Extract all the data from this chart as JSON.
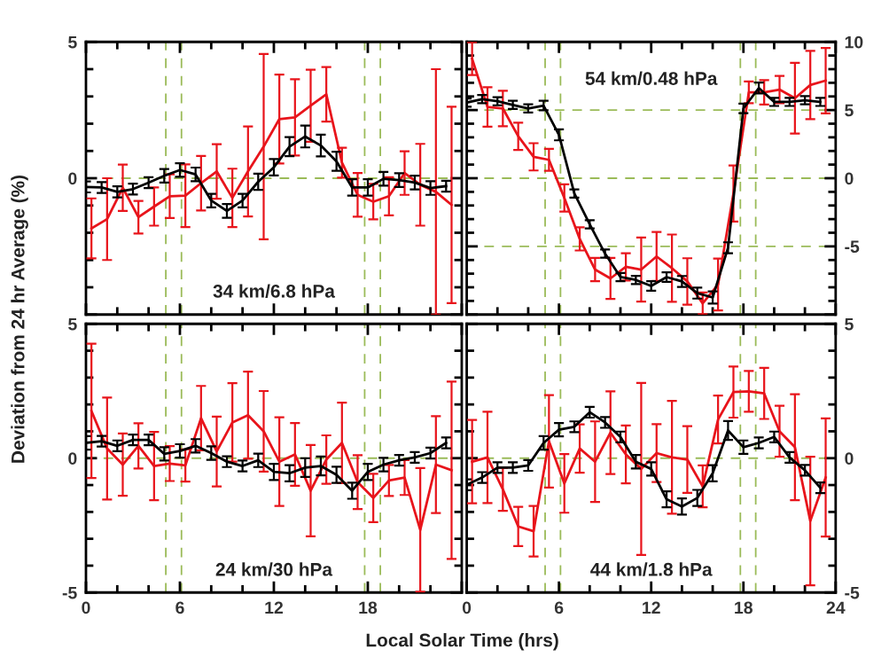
{
  "chart_data": [
    {
      "type": "line",
      "ylabel": "Deviation from 24 hr Average (%)",
      "annotations": [
        "34 km/6.8 hPa"
      ],
      "xlim": [
        0,
        24
      ],
      "xticks": [
        0,
        6,
        12,
        18,
        24
      ],
      "ylim": [
        -5,
        5
      ],
      "yticks": [
        {
          "value": -5,
          "label": null
        },
        0,
        5
      ],
      "tick_labels": "y",
      "grid": false,
      "marker": "none",
      "line_style": "solid",
      "ref_lines": [
        {
          "axis": "x",
          "value": 5.1,
          "color": "#9bbb59",
          "line_style": "dashed"
        },
        {
          "axis": "x",
          "value": 6.1,
          "color": "#9bbb59",
          "line_style": "dashed"
        },
        {
          "axis": "x",
          "value": 17.8,
          "color": "#9bbb59",
          "line_style": "dashed"
        },
        {
          "axis": "x",
          "value": 18.8,
          "color": "#9bbb59",
          "line_style": "dashed"
        },
        {
          "axis": "y",
          "value": 0,
          "color": "#9bbb59",
          "line_style": "dashed"
        }
      ],
      "series": [
        {
          "color": "#e8141b",
          "x": [
            0.35,
            1.35,
            2.35,
            3.35,
            4.35,
            5.35,
            6.35,
            7.35,
            8.35,
            9.35,
            10.35,
            11.35,
            12.35,
            13.35,
            14.35,
            15.35,
            16.35,
            17.35,
            18.35,
            19.35,
            20.35,
            21.35,
            22.35,
            23.35
          ],
          "values": [
            -1.84,
            -1.5,
            -0.35,
            -1.43,
            -1.04,
            -0.66,
            -0.64,
            -0.18,
            0.25,
            -0.72,
            0.25,
            1.16,
            2.17,
            2.23,
            2.66,
            3.08,
            0.57,
            -0.61,
            -0.86,
            -0.66,
            0.19,
            -0.24,
            -0.5,
            -0.98
          ],
          "errors": [
            1.1,
            1.5,
            0.85,
            0.6,
            0.7,
            0.8,
            1.15,
            1.0,
            1.0,
            1.07,
            1.65,
            3.4,
            1.63,
            1.4,
            1.32,
            1.0,
            0.55,
            0.8,
            0.65,
            0.7,
            0.8,
            1.5,
            4.5,
            3.6
          ]
        },
        {
          "color": "#000000",
          "x": [
            0,
            1,
            2,
            3,
            4,
            5,
            6,
            7,
            8,
            9,
            10,
            11,
            12,
            13,
            14,
            15,
            16,
            17,
            18,
            19,
            20,
            21,
            22,
            23
          ],
          "values": [
            -0.32,
            -0.34,
            -0.5,
            -0.4,
            -0.16,
            0.09,
            0.3,
            0.14,
            -0.82,
            -1.2,
            -0.82,
            -0.13,
            0.4,
            1.16,
            1.53,
            1.2,
            0.62,
            -0.34,
            -0.34,
            -0.02,
            -0.07,
            -0.16,
            -0.36,
            -0.29
          ],
          "errors": [
            0.2,
            0.2,
            0.2,
            0.2,
            0.2,
            0.25,
            0.25,
            0.25,
            0.25,
            0.25,
            0.25,
            0.3,
            0.3,
            0.35,
            0.4,
            0.4,
            0.35,
            0.3,
            0.3,
            0.25,
            0.25,
            0.25,
            0.25,
            0.2
          ]
        }
      ]
    },
    {
      "type": "line",
      "annotations": [
        "54 km/0.48 hPa"
      ],
      "xlim": [
        0,
        24
      ],
      "xticks": [
        0,
        6,
        12,
        18,
        24
      ],
      "ylim": [
        -10,
        10
      ],
      "yticks": [
        {
          "value": -10,
          "label": null
        },
        -5,
        0,
        5,
        10
      ],
      "tick_labels": "y",
      "grid": false,
      "marker": "none",
      "line_style": "solid",
      "ref_lines": [
        {
          "axis": "x",
          "value": 5.1,
          "color": "#9bbb59",
          "line_style": "dashed"
        },
        {
          "axis": "x",
          "value": 6.1,
          "color": "#9bbb59",
          "line_style": "dashed"
        },
        {
          "axis": "x",
          "value": 17.8,
          "color": "#9bbb59",
          "line_style": "dashed"
        },
        {
          "axis": "x",
          "value": 18.8,
          "color": "#9bbb59",
          "line_style": "dashed"
        },
        {
          "axis": "y",
          "value": 5,
          "color": "#9bbb59",
          "line_style": "dashed"
        },
        {
          "axis": "y",
          "value": 0,
          "color": "#9bbb59",
          "line_style": "dashed"
        },
        {
          "axis": "y",
          "value": -5,
          "color": "#9bbb59",
          "line_style": "dashed"
        }
      ],
      "series": [
        {
          "color": "#e8141b",
          "x": [
            0.35,
            1.35,
            2.35,
            3.35,
            4.35,
            5.35,
            6.35,
            7.35,
            8.35,
            9.35,
            10.35,
            11.35,
            12.35,
            13.35,
            14.35,
            15.35,
            16.35,
            17.35,
            18.35,
            19.35,
            20.35,
            21.35,
            22.35,
            23.35
          ],
          "values": [
            8.77,
            5.23,
            5.12,
            3.08,
            1.57,
            1.35,
            -1.44,
            -4.45,
            -6.7,
            -7.35,
            -6.5,
            -6.7,
            -5.74,
            -6.6,
            -7.57,
            -9.18,
            -7.8,
            -1.12,
            6.3,
            6.3,
            6.5,
            5.87,
            6.84,
            7.16
          ],
          "errors": [
            1.2,
            1.45,
            1.3,
            1.0,
            1.0,
            0.8,
            1.0,
            0.85,
            0.86,
            1.5,
            1.0,
            2.35,
            1.8,
            2.47,
            1.7,
            0.8,
            1.9,
            2.06,
            0.8,
            0.9,
            1.0,
            2.6,
            2.5,
            2.4
          ]
        },
        {
          "color": "#000000",
          "x": [
            0,
            1,
            2,
            3,
            4,
            5,
            6,
            7,
            8,
            9,
            10,
            11,
            12,
            13,
            14,
            15,
            16,
            17,
            18,
            19,
            20,
            21,
            22,
            23
          ],
          "values": [
            5.55,
            5.8,
            5.65,
            5.38,
            5.12,
            5.33,
            3.18,
            -1.12,
            -3.38,
            -5.53,
            -7.25,
            -7.46,
            -7.9,
            -7.25,
            -7.57,
            -8.43,
            -8.75,
            -5.1,
            5.12,
            6.62,
            5.6,
            5.6,
            5.72,
            5.6
          ],
          "errors": [
            0.3,
            0.3,
            0.3,
            0.3,
            0.3,
            0.35,
            0.4,
            0.3,
            0.3,
            0.3,
            0.3,
            0.3,
            0.35,
            0.35,
            0.4,
            0.4,
            0.45,
            0.4,
            0.35,
            0.4,
            0.3,
            0.3,
            0.3,
            0.3
          ]
        }
      ]
    },
    {
      "type": "line",
      "xlabel": "Local Solar Time (hrs)",
      "annotations": [
        "24 km/30 hPa"
      ],
      "xlim": [
        0,
        24
      ],
      "xticks": [
        0,
        6,
        12,
        18,
        {
          "value": 24,
          "label": null
        }
      ],
      "ylim": [
        -5,
        5
      ],
      "yticks": [
        -5,
        0,
        5
      ],
      "grid": false,
      "marker": "none",
      "line_style": "solid",
      "ref_lines": [
        {
          "axis": "x",
          "value": 5.1,
          "color": "#9bbb59",
          "line_style": "dashed"
        },
        {
          "axis": "x",
          "value": 6.1,
          "color": "#9bbb59",
          "line_style": "dashed"
        },
        {
          "axis": "x",
          "value": 17.8,
          "color": "#9bbb59",
          "line_style": "dashed"
        },
        {
          "axis": "x",
          "value": 18.8,
          "color": "#9bbb59",
          "line_style": "dashed"
        },
        {
          "axis": "y",
          "value": 0,
          "color": "#9bbb59",
          "line_style": "dashed"
        }
      ],
      "series": [
        {
          "color": "#e8141b",
          "x": [
            0.35,
            1.35,
            2.35,
            3.35,
            4.35,
            5.35,
            6.35,
            7.35,
            8.35,
            9.35,
            10.35,
            11.35,
            12.35,
            13.35,
            14.35,
            15.35,
            16.35,
            17.35,
            18.35,
            19.35,
            20.35,
            21.35,
            22.35,
            23.35
          ],
          "values": [
            1.76,
            0.36,
            -0.24,
            0.46,
            -0.29,
            -0.2,
            -0.27,
            1.49,
            0.25,
            1.33,
            1.6,
            1.0,
            -0.13,
            0.14,
            -1.21,
            -0.05,
            0.57,
            -0.89,
            -1.48,
            -0.83,
            -0.72,
            -2.67,
            -0.24,
            -0.45
          ],
          "errors": [
            2.5,
            1.9,
            1.16,
            0.84,
            1.27,
            0.65,
            0.6,
            1.2,
            1.3,
            1.46,
            1.62,
            1.5,
            1.65,
            1.17,
            1.7,
            0.9,
            1.5,
            1.0,
            0.9,
            0.58,
            0.65,
            2.3,
            1.8,
            3.3
          ]
        },
        {
          "color": "#000000",
          "x": [
            0,
            1,
            2,
            3,
            4,
            5,
            6,
            7,
            8,
            9,
            10,
            11,
            12,
            13,
            14,
            15,
            16,
            17,
            18,
            19,
            20,
            21,
            22,
            23
          ],
          "values": [
            0.57,
            0.63,
            0.46,
            0.68,
            0.68,
            0.16,
            0.27,
            0.46,
            0.19,
            -0.13,
            -0.29,
            -0.08,
            -0.51,
            -0.56,
            -0.35,
            -0.29,
            -0.62,
            -1.21,
            -0.51,
            -0.24,
            -0.08,
            0.03,
            0.19,
            0.57
          ],
          "errors": [
            0.25,
            0.2,
            0.2,
            0.2,
            0.2,
            0.25,
            0.25,
            0.25,
            0.25,
            0.2,
            0.2,
            0.25,
            0.3,
            0.3,
            0.35,
            0.35,
            0.3,
            0.3,
            0.3,
            0.25,
            0.2,
            0.2,
            0.2,
            0.2
          ]
        }
      ]
    },
    {
      "type": "line",
      "annotations": [
        "44 km/1.8 hPa"
      ],
      "xlim": [
        0,
        24
      ],
      "xticks": [
        0,
        6,
        12,
        18,
        24
      ],
      "ylim": [
        -5,
        5
      ],
      "yticks": [
        -5,
        0,
        5
      ],
      "grid": false,
      "marker": "none",
      "line_style": "solid",
      "ref_lines": [
        {
          "axis": "x",
          "value": 5.1,
          "color": "#9bbb59",
          "line_style": "dashed"
        },
        {
          "axis": "x",
          "value": 6.1,
          "color": "#9bbb59",
          "line_style": "dashed"
        },
        {
          "axis": "x",
          "value": 17.8,
          "color": "#9bbb59",
          "line_style": "dashed"
        },
        {
          "axis": "x",
          "value": 18.8,
          "color": "#9bbb59",
          "line_style": "dashed"
        },
        {
          "axis": "y",
          "value": 0,
          "color": "#9bbb59",
          "line_style": "dashed"
        }
      ],
      "series": [
        {
          "color": "#e8141b",
          "x": [
            0.35,
            1.35,
            2.35,
            3.35,
            4.35,
            5.35,
            6.35,
            7.35,
            8.35,
            9.35,
            10.35,
            11.35,
            12.35,
            13.35,
            14.35,
            15.35,
            16.35,
            17.35,
            18.35,
            19.35,
            20.35,
            21.35,
            22.35,
            23.35
          ],
          "values": [
            -0.13,
            0.03,
            -1.16,
            -2.54,
            -2.72,
            0.63,
            -0.94,
            0.36,
            -0.13,
            0.95,
            0.14,
            -0.4,
            0.19,
            0.03,
            -0.05,
            -1.05,
            1.44,
            2.46,
            2.49,
            2.41,
            1.0,
            0.41,
            -2.34,
            -0.72
          ],
          "errors": [
            1.55,
            1.7,
            0.8,
            0.73,
            0.94,
            1.72,
            1.09,
            0.9,
            1.5,
            1.54,
            1.08,
            3.2,
            1.08,
            2.1,
            1.24,
            0.78,
            0.89,
            0.95,
            0.76,
            0.95,
            0.95,
            1.97,
            2.39,
            2.2
          ]
        },
        {
          "color": "#000000",
          "x": [
            0,
            1,
            2,
            3,
            4,
            5,
            6,
            7,
            8,
            9,
            10,
            11,
            12,
            13,
            14,
            15,
            16,
            17,
            18,
            19,
            20,
            21,
            22,
            23
          ],
          "values": [
            -0.99,
            -0.72,
            -0.35,
            -0.35,
            -0.27,
            0.57,
            1.06,
            1.17,
            1.71,
            1.33,
            0.79,
            -0.13,
            -0.4,
            -1.53,
            -1.8,
            -1.48,
            -0.56,
            1.03,
            0.41,
            0.57,
            0.79,
            0.03,
            -0.45,
            -1.1
          ],
          "errors": [
            0.2,
            0.2,
            0.2,
            0.2,
            0.2,
            0.25,
            0.25,
            0.2,
            0.2,
            0.2,
            0.2,
            0.25,
            0.25,
            0.3,
            0.3,
            0.3,
            0.3,
            0.35,
            0.25,
            0.2,
            0.2,
            0.2,
            0.2,
            0.2
          ]
        }
      ]
    }
  ]
}
